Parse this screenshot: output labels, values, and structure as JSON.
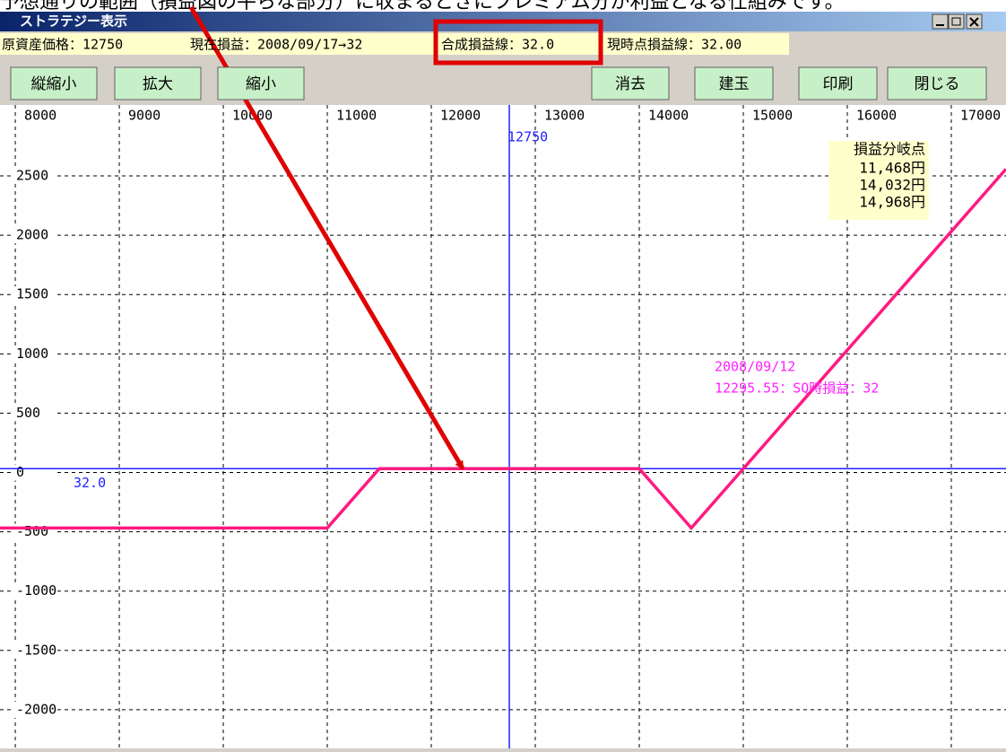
{
  "header_text": "予想通りの範囲（損益図の平らな部分）に収まるときにプレミアム分が利益となる仕組みです。",
  "window": {
    "title": "ストラテジー表示",
    "info": [
      "原資産価格：12750",
      "現在損益：2008/09/17→32",
      "合成損益線：32.0",
      "現時点損益線：32.00"
    ],
    "buttons_left": [
      "縦縮小",
      "拡大",
      "縮小"
    ],
    "buttons_right": [
      "消去",
      "建玉",
      "印刷",
      "閉じる"
    ]
  },
  "chart_data": {
    "type": "line",
    "xlim": [
      7853,
      17526
    ],
    "ylim": [
      -2326,
      3098
    ],
    "xticks": [
      8000,
      9000,
      10000,
      11000,
      12000,
      13000,
      14000,
      15000,
      16000,
      17000
    ],
    "yticks": [
      -2000,
      -1500,
      -1000,
      -500,
      0,
      500,
      1000,
      1500,
      2000,
      2500
    ],
    "grid": true,
    "x": [
      7853,
      11000,
      11500,
      14000,
      14500,
      17526
    ],
    "series": [
      {
        "color": "#ff1a80",
        "values": [
          -468,
          -468,
          32,
          32,
          -468,
          2558
        ]
      }
    ],
    "vline": 12750,
    "hline": {
      "value": 32,
      "label": "32.0"
    },
    "breakeven": {
      "title": "損益分岐点",
      "items": [
        "11,468円",
        "14,032円",
        "14,968円"
      ]
    },
    "sq_note": [
      "2008/09/12",
      "12295.55：SQ時損益：32"
    ]
  }
}
